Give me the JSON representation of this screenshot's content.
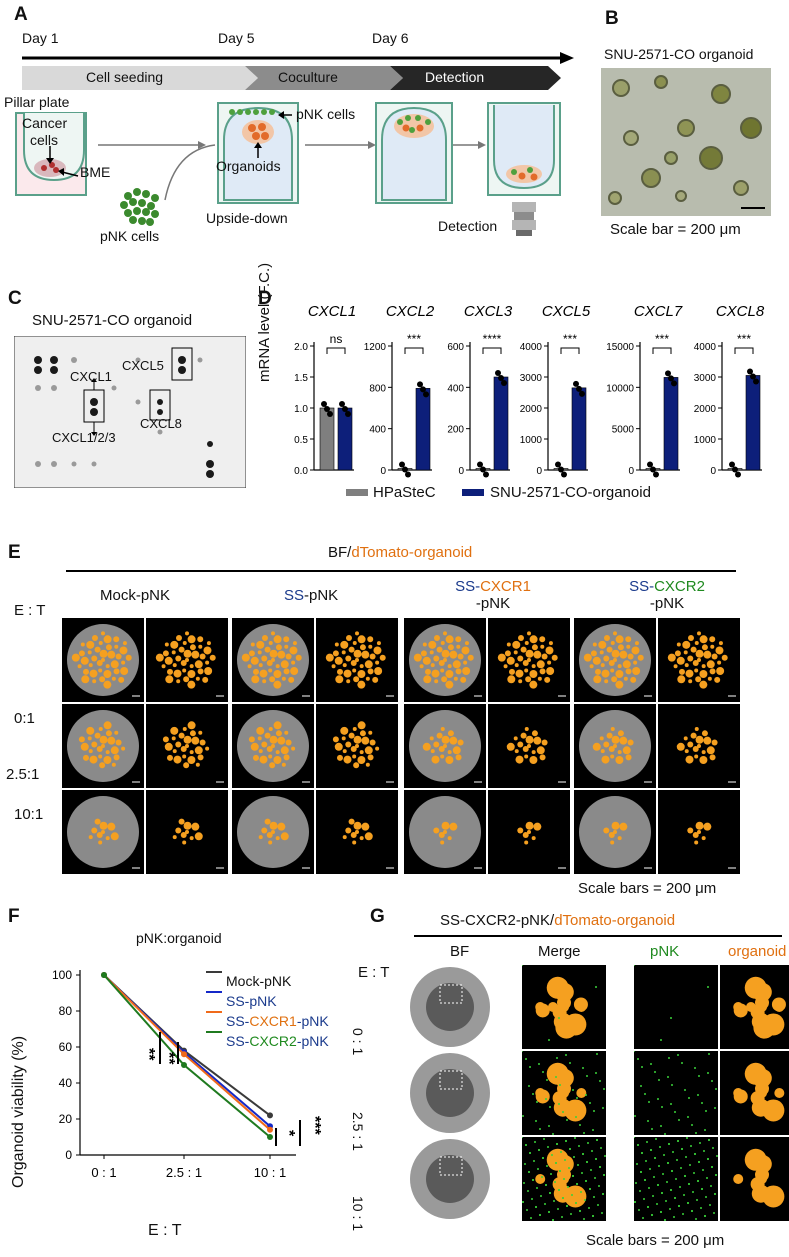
{
  "panels": {
    "A": "A",
    "B": "B",
    "C": "C",
    "D": "D",
    "E": "E",
    "F": "F",
    "G": "G"
  },
  "a": {
    "days": [
      "Day 1",
      "Day 5",
      "Day 6"
    ],
    "phases": [
      "Cell seeding",
      "Coculture",
      "Detection"
    ],
    "pillar_plate": "Pillar plate",
    "cancer_cells": "Cancer",
    "cells": "cells",
    "bme": "BME",
    "pnk_cells_left": "pNK cells",
    "pnk_cells_top": "pNK cells",
    "organoids": "Organoids",
    "upside_down": "Upside-down",
    "detection": "Detection"
  },
  "b": {
    "title": "SNU-2571-CO organoid",
    "scale": "Scale bar = 200 μm"
  },
  "c": {
    "title": "SNU-2571-CO organoid",
    "labels": [
      "CXCL1",
      "CXCL5",
      "CXCL1/2/3",
      "CXCL8"
    ]
  },
  "d": {
    "ylabel": "mRNA level (F.C.)",
    "legend": [
      "HPaSteC",
      "SNU-2571-CO-organoid"
    ],
    "colors": {
      "grey": "#7f7f7f",
      "navy": "#0d1f7a"
    }
  },
  "chart_data": [
    {
      "type": "bar",
      "title": "CXCL1",
      "categories": [
        "HPaSteC",
        "SNU-2571-CO-organoid"
      ],
      "values": [
        1.0,
        1.0
      ],
      "ylim": [
        0,
        2.0
      ],
      "ticks": [
        "0.0",
        "0.5",
        "1.0",
        "1.5",
        "2.0"
      ],
      "sig": "ns"
    },
    {
      "type": "bar",
      "title": "CXCL2",
      "categories": [
        "HPaSteC",
        "SNU-2571-CO-organoid"
      ],
      "values": [
        1,
        790
      ],
      "ylim": [
        0,
        1200
      ],
      "ticks": [
        "0",
        "400",
        "800",
        "1200"
      ],
      "sig": "***"
    },
    {
      "type": "bar",
      "title": "CXCL3",
      "categories": [
        "HPaSteC",
        "SNU-2571-CO-organoid"
      ],
      "values": [
        1,
        450
      ],
      "ylim": [
        0,
        600
      ],
      "ticks": [
        "0",
        "200",
        "400",
        "600"
      ],
      "sig": "****"
    },
    {
      "type": "bar",
      "title": "CXCL5",
      "categories": [
        "HPaSteC",
        "SNU-2571-CO-organoid"
      ],
      "values": [
        1,
        2650
      ],
      "ylim": [
        0,
        4000
      ],
      "ticks": [
        "0",
        "1000",
        "2000",
        "3000",
        "4000"
      ],
      "sig": "***"
    },
    {
      "type": "bar",
      "title": "CXCL7",
      "categories": [
        "HPaSteC",
        "SNU-2571-CO-organoid"
      ],
      "values": [
        1,
        11200
      ],
      "ylim": [
        0,
        15000
      ],
      "ticks": [
        "0",
        "5000",
        "10000",
        "15000"
      ],
      "sig": "***"
    },
    {
      "type": "bar",
      "title": "CXCL8",
      "categories": [
        "HPaSteC",
        "SNU-2571-CO-organoid"
      ],
      "values": [
        1,
        3050
      ],
      "ylim": [
        0,
        4000
      ],
      "ticks": [
        "0",
        "1000",
        "2000",
        "3000",
        "4000"
      ],
      "sig": "***"
    },
    {
      "type": "line",
      "title": "pNK:organoid",
      "xlabel": "E : T",
      "ylabel": "Organoid viability (%)",
      "categories": [
        "0 : 1",
        "2.5 : 1",
        "10 : 1"
      ],
      "ylim": [
        0,
        100
      ],
      "yticks": [
        "0",
        "20",
        "40",
        "60",
        "80",
        "100"
      ],
      "series": [
        {
          "name": "Mock-pNK",
          "values": [
            100,
            58,
            22
          ],
          "color": "#3a3a3a"
        },
        {
          "name": "SS-pNK",
          "values": [
            100,
            57,
            16
          ],
          "color": "#1428c8"
        },
        {
          "name": "SS-CXCR1-pNK",
          "values": [
            100,
            56,
            14
          ],
          "color": "#f06a1a"
        },
        {
          "name": "SS-CXCR2-pNK",
          "values": [
            100,
            50,
            10
          ],
          "color": "#1f7a1f"
        }
      ],
      "sig_mid": [
        "**",
        "**"
      ],
      "sig_end": [
        "*",
        "***"
      ]
    }
  ],
  "e": {
    "header_bf": "BF/",
    "header_dt": "dTomato-organoid",
    "groups": [
      {
        "a": "",
        "b": "Mock-pNK",
        "c": ""
      },
      {
        "a": "SS",
        "b": "-pNK",
        "c": ""
      },
      {
        "a": "SS-",
        "b": "CXCR1",
        "c": "-pNK"
      },
      {
        "a": "SS-",
        "b": "CXCR2",
        "c": "-pNK"
      }
    ],
    "et": "E : T",
    "rows": [
      "0:1",
      "2.5:1",
      "10:1"
    ],
    "scale": "Scale bars = 200 μm"
  },
  "f": {
    "legend": [
      "Mock-pNK",
      "SS-pNK",
      "SS-",
      "CXCR1",
      "-pNK",
      "SS-",
      "CXCR2",
      "-pNK"
    ]
  },
  "g": {
    "header_a": "SS-CXCR2-pNK/",
    "header_b": "dTomato-organoid",
    "cols": [
      "BF",
      "Merge",
      "pNK",
      "organoid"
    ],
    "et": "E : T",
    "rows": [
      "0 : 1",
      "2.5 : 1",
      "10 : 1"
    ],
    "scale": "Scale bars = 200 μm"
  }
}
